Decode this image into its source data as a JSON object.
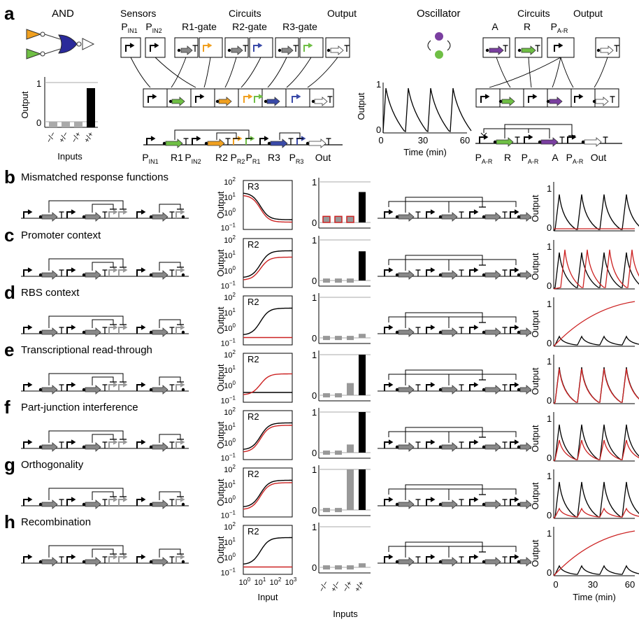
{
  "panel_a": {
    "label": "a",
    "and_title": "AND",
    "sensors_title": "Sensors",
    "circuits_title": "Circuits",
    "output_title": "Output",
    "oscillator_title": "Oscillator",
    "circuits2_title": "Circuits",
    "output2_title": "Output",
    "sensor_labels": [
      "P",
      "P"
    ],
    "sensor_subs": [
      "IN1",
      "IN2"
    ],
    "gate_labels": [
      "R1-gate",
      "R2-gate",
      "R3-gate"
    ],
    "osc_part_labels": [
      "A",
      "R",
      "P"
    ],
    "osc_part_sub": "A-R",
    "and_ylabel": "Output",
    "and_xlabel": "Inputs",
    "and_yticks": [
      "1",
      "0"
    ],
    "and_xticks": [
      "−/−",
      "+/−",
      "−/+",
      "+/+"
    ],
    "osc_ylabel": "Output",
    "osc_xlabel": "Time (min)",
    "osc_yticks": [
      "1",
      "0"
    ],
    "osc_xticks": [
      "0",
      "30",
      "60"
    ],
    "and_circuit_labels": [
      "P",
      "R1",
      "P",
      "R2",
      "P",
      "P",
      "R3",
      "P",
      "Out"
    ],
    "and_circuit_subs": [
      "IN1",
      "",
      "IN2",
      "",
      "R2",
      "R1",
      "",
      "R3",
      ""
    ],
    "osc_circuit_labels": [
      "P",
      "R",
      "P",
      "A",
      "P",
      "Out"
    ],
    "osc_circuit_subs": [
      "A-R",
      "",
      "A-R",
      "",
      "A-R",
      ""
    ]
  },
  "rows": [
    {
      "letter": "b",
      "title": "Mismatched response functions",
      "curve_label": "R3"
    },
    {
      "letter": "c",
      "title": "Promoter context",
      "curve_label": "R2"
    },
    {
      "letter": "d",
      "title": "RBS context",
      "curve_label": "R2"
    },
    {
      "letter": "e",
      "title": "Transcriptional read-through",
      "curve_label": "R2"
    },
    {
      "letter": "f",
      "title": "Part-junction interference",
      "curve_label": "R2"
    },
    {
      "letter": "g",
      "title": "Orthogonality",
      "curve_label": "R2"
    },
    {
      "letter": "h",
      "title": "Recombination",
      "curve_label": "R2"
    }
  ],
  "rf_ylabel": "Output",
  "rf_yticks": [
    "10",
    "10",
    "10",
    "10"
  ],
  "rf_yexps": [
    "2",
    "1",
    "0",
    "−1"
  ],
  "rf_xticks": [
    "10",
    "10",
    "10",
    "10"
  ],
  "rf_xexps": [
    "0",
    "1",
    "2",
    "3"
  ],
  "rf_xlabel": "Input",
  "bar_yticks": [
    "1",
    "0"
  ],
  "bar_xticks": [
    "−/−",
    "+/−",
    "−/+",
    "+/+"
  ],
  "bar_xlabel": "Inputs",
  "osc_ylabel": "Output",
  "osc_xticks": [
    "0",
    "30",
    "60"
  ],
  "osc_xlabel": "Time (min)",
  "osc_yticks": [
    "1",
    "0"
  ],
  "colors": {
    "wt": "#000000",
    "mut": "#cc2222",
    "grey": "#999999",
    "green": "#6fbf45",
    "orange": "#f0a020",
    "blue": "#3a4aa8",
    "purple": "#7a3fa0",
    "navy": "#2a2a9a"
  },
  "chart_data": [
    {
      "type": "bar",
      "title": "",
      "ylabel": "Output",
      "xlabel": "Inputs",
      "categories": [
        "−/−",
        "+/−",
        "−/+",
        "+/+"
      ],
      "values": [
        0.05,
        0.05,
        0.05,
        1.0
      ],
      "ylim": [
        0,
        1
      ]
    },
    {
      "type": "line",
      "ylabel": "Output",
      "xlabel": "Time (min)",
      "xlim": [
        0,
        60
      ],
      "ylim": [
        0,
        1
      ],
      "series": [
        {
          "peaks_at": [
            2,
            18,
            34,
            50
          ]
        }
      ]
    },
    {
      "type": "bar",
      "panel": "b",
      "categories": [
        "−/−",
        "+/−",
        "−/+",
        "+/+"
      ],
      "values": [
        0.15,
        0.15,
        0.15,
        0.75
      ]
    },
    {
      "type": "bar",
      "panel": "c",
      "categories": [
        "−/−",
        "+/−",
        "−/+",
        "+/+"
      ],
      "values": [
        0.05,
        0.05,
        0.05,
        0.72
      ]
    },
    {
      "type": "bar",
      "panel": "d",
      "categories": [
        "−/−",
        "+/−",
        "−/+",
        "+/+"
      ],
      "values": [
        0.05,
        0.05,
        0.05,
        0.1
      ]
    },
    {
      "type": "bar",
      "panel": "e",
      "categories": [
        "−/−",
        "+/−",
        "−/+",
        "+/+"
      ],
      "values": [
        0.05,
        0.05,
        0.3,
        1.0
      ]
    },
    {
      "type": "bar",
      "panel": "f",
      "categories": [
        "−/−",
        "+/−",
        "−/+",
        "+/+"
      ],
      "values": [
        0.05,
        0.05,
        0.2,
        1.0
      ]
    },
    {
      "type": "bar",
      "panel": "g",
      "categories": [
        "−/−",
        "+/−",
        "−/+",
        "+/+"
      ],
      "values": [
        0.05,
        0.05,
        1.0,
        1.0
      ]
    },
    {
      "type": "bar",
      "panel": "h",
      "categories": [
        "−/−",
        "+/−",
        "−/+",
        "+/+"
      ],
      "values": [
        0.05,
        0.05,
        0.05,
        0.1
      ]
    }
  ]
}
